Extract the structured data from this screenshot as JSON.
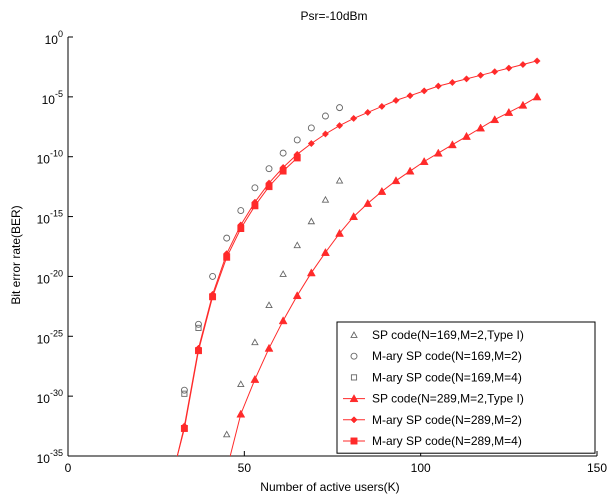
{
  "chart_data": {
    "type": "line",
    "title": "Psr=-10dBm",
    "xlabel": "Number of active users(K)",
    "ylabel": "Bit error rate(BER)",
    "xlim": [
      0,
      150
    ],
    "ylim_exponent": [
      -35,
      0
    ],
    "yscale": "log",
    "x_ticks": [
      0,
      50,
      100,
      150
    ],
    "y_ticks": [
      {
        "exp": 0,
        "base": "10",
        "sup": "0"
      },
      {
        "exp": -5,
        "base": "10",
        "sup": "-5"
      },
      {
        "exp": -10,
        "base": "10",
        "sup": "-10"
      },
      {
        "exp": -15,
        "base": "10",
        "sup": "-15"
      },
      {
        "exp": -20,
        "base": "10",
        "sup": "-20"
      },
      {
        "exp": -25,
        "base": "10",
        "sup": "-25"
      },
      {
        "exp": -30,
        "base": "10",
        "sup": "-30"
      },
      {
        "exp": -35,
        "base": "10",
        "sup": "-35"
      }
    ],
    "grid": false,
    "legend_position": "bottom-right",
    "colors": {
      "theory": "#666666",
      "simulation": "#ff2a2a"
    },
    "series": [
      {
        "name": "SP code(N=169,M=2,Type I)",
        "marker": "triangle-open",
        "line": false,
        "color": "#666666",
        "x": [
          45,
          49,
          53,
          57,
          61,
          65,
          69,
          73,
          77
        ],
        "y_exp": [
          -33.2,
          -29,
          -25.5,
          -22.4,
          -19.8,
          -17.4,
          -15.4,
          -13.6,
          -12
        ]
      },
      {
        "name": "M-ary SP code(N=169,M=2)",
        "marker": "circle-open",
        "line": false,
        "color": "#666666",
        "x": [
          33,
          37,
          41,
          45,
          49,
          53,
          57,
          61,
          65,
          69,
          73,
          77
        ],
        "y_exp": [
          -29.5,
          -24,
          -20,
          -16.8,
          -14.5,
          -12.6,
          -11,
          -9.7,
          -8.6,
          -7.6,
          -6.6,
          -5.9
        ]
      },
      {
        "name": "M-ary SP code(N=169,M=4)",
        "marker": "square-open",
        "line": false,
        "color": "#666666",
        "x": [
          33,
          37
        ],
        "y_exp": [
          -29.8,
          -24.3
        ]
      },
      {
        "name": "SP code(N=289,M=2,Type I)",
        "marker": "triangle-filled",
        "line": true,
        "color": "#ff2a2a",
        "x": [
          46,
          49,
          53,
          57,
          61,
          65,
          69,
          73,
          77,
          81,
          85,
          89,
          93,
          97,
          101,
          105,
          109,
          113,
          117,
          121,
          125,
          129,
          133
        ],
        "y_exp": [
          -35,
          -31.5,
          -28.6,
          -26,
          -23.7,
          -21.6,
          -19.7,
          -18,
          -16.4,
          -15,
          -13.9,
          -12.9,
          -12,
          -11.2,
          -10.4,
          -9.7,
          -9,
          -8.3,
          -7.6,
          -6.9,
          -6.3,
          -5.7,
          -5
        ]
      },
      {
        "name": "M-ary SP code(N=289,M=2)",
        "marker": "diamond-filled",
        "line": true,
        "color": "#ff2a2a",
        "x": [
          31,
          33,
          37,
          41,
          45,
          49,
          53,
          57,
          61,
          65,
          69,
          73,
          77,
          81,
          85,
          89,
          93,
          97,
          101,
          105,
          109,
          113,
          117,
          121,
          125,
          129,
          133
        ],
        "y_exp": [
          -35,
          -32.5,
          -26,
          -21.5,
          -18.1,
          -15.7,
          -13.8,
          -12.2,
          -10.9,
          -9.8,
          -8.9,
          -8.1,
          -7.4,
          -6.8,
          -6.3,
          -5.8,
          -5.3,
          -4.9,
          -4.5,
          -4.1,
          -3.8,
          -3.5,
          -3.2,
          -2.9,
          -2.6,
          -2.3,
          -2
        ]
      },
      {
        "name": "M-ary SP code(N=289,M=4)",
        "marker": "square-filled",
        "line": true,
        "color": "#ff2a2a",
        "x": [
          31,
          33,
          37,
          41,
          45,
          49,
          53,
          57,
          61,
          65
        ],
        "y_exp": [
          -35,
          -32.7,
          -26.2,
          -21.7,
          -18.4,
          -16,
          -14.1,
          -12.5,
          -11.2,
          -10.1
        ]
      }
    ]
  }
}
